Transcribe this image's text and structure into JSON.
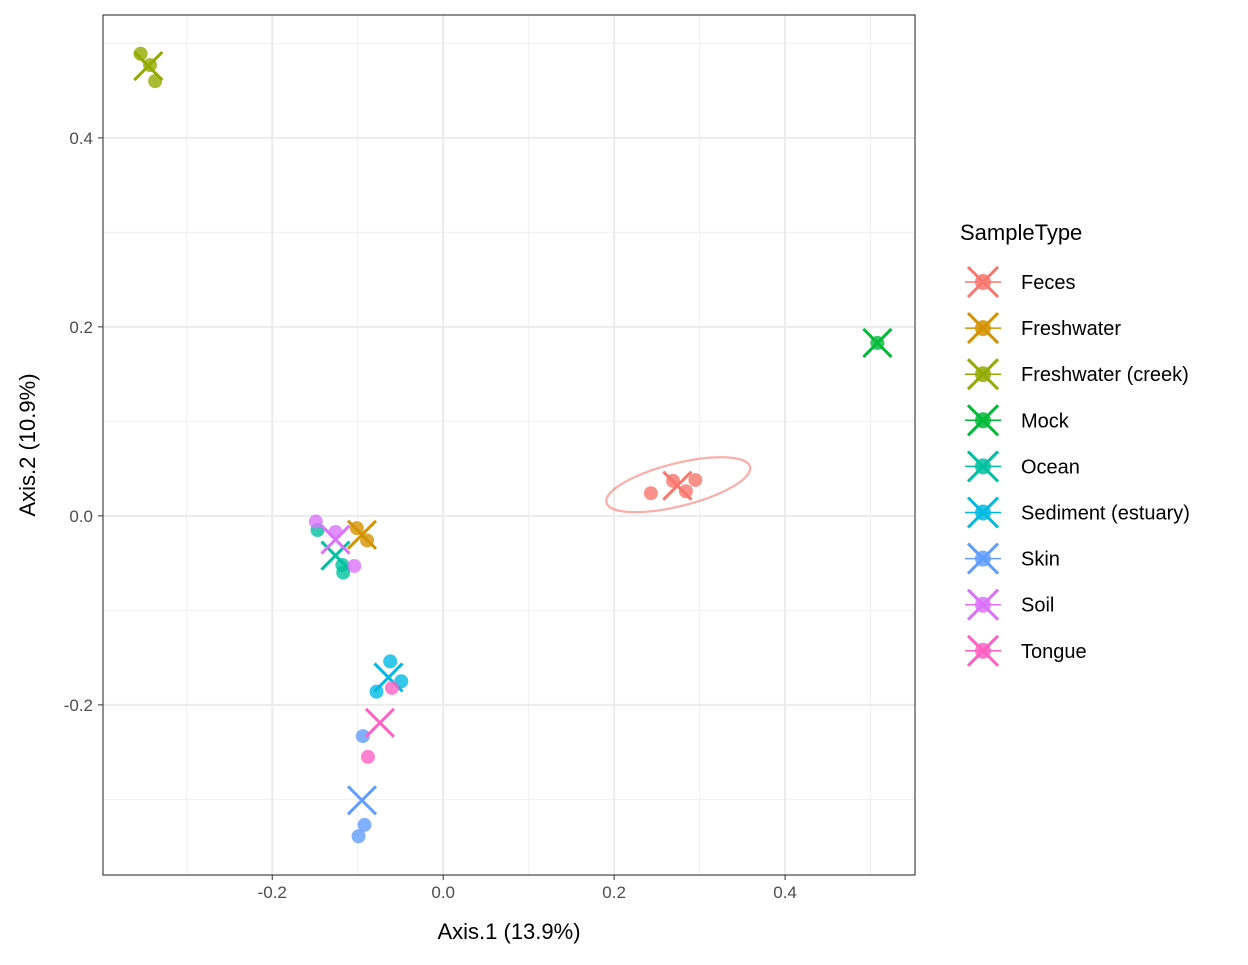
{
  "chart_data": {
    "type": "scatter",
    "xlabel": "Axis.1 (13.9%)",
    "ylabel": "Axis.2 (10.9%)",
    "xlim": [
      -0.398,
      0.552
    ],
    "ylim": [
      -0.38,
      0.53
    ],
    "x_ticks": [
      {
        "v": -0.2,
        "label": "-0.2"
      },
      {
        "v": 0.0,
        "label": "0.0"
      },
      {
        "v": 0.2,
        "label": "0.2"
      },
      {
        "v": 0.4,
        "label": "0.4"
      }
    ],
    "y_ticks": [
      {
        "v": -0.2,
        "label": "-0.2"
      },
      {
        "v": 0.0,
        "label": "0.0"
      },
      {
        "v": 0.2,
        "label": "0.2"
      },
      {
        "v": 0.4,
        "label": "0.4"
      }
    ],
    "grid": true,
    "legend": {
      "title": "SampleType",
      "placement": "right"
    },
    "series": [
      {
        "name": "Feces",
        "color": "#F8766D",
        "points": [
          [
            0.243,
            0.024
          ],
          [
            0.269,
            0.037
          ],
          [
            0.284,
            0.026
          ],
          [
            0.295,
            0.038
          ]
        ],
        "centroid": [
          0.274,
          0.032
        ]
      },
      {
        "name": "Freshwater",
        "color": "#D39200",
        "points": [
          [
            -0.101,
            -0.013
          ],
          [
            -0.089,
            -0.026
          ]
        ],
        "centroid": [
          -0.095,
          -0.02
        ]
      },
      {
        "name": "Freshwater (creek)",
        "color": "#93AA00",
        "points": [
          [
            -0.354,
            0.489
          ],
          [
            -0.343,
            0.477
          ],
          [
            -0.337,
            0.46
          ]
        ],
        "centroid": [
          -0.345,
          0.476
        ]
      },
      {
        "name": "Mock",
        "color": "#00BA38",
        "points": [
          [
            0.508,
            0.183
          ]
        ],
        "centroid": [
          0.508,
          0.183
        ]
      },
      {
        "name": "Ocean",
        "color": "#00C19F",
        "points": [
          [
            -0.147,
            -0.015
          ],
          [
            -0.118,
            -0.052
          ],
          [
            -0.117,
            -0.06
          ]
        ],
        "centroid": [
          -0.126,
          -0.042
        ]
      },
      {
        "name": "Sediment (estuary)",
        "color": "#00B9E3",
        "points": [
          [
            -0.062,
            -0.154
          ],
          [
            -0.049,
            -0.175
          ],
          [
            -0.078,
            -0.186
          ]
        ],
        "centroid": [
          -0.064,
          -0.171
        ]
      },
      {
        "name": "Skin",
        "color": "#619CFF",
        "points": [
          [
            -0.094,
            -0.233
          ],
          [
            -0.092,
            -0.327
          ],
          [
            -0.099,
            -0.339
          ]
        ],
        "centroid": [
          -0.095,
          -0.301
        ]
      },
      {
        "name": "Soil",
        "color": "#DB72FB",
        "points": [
          [
            -0.149,
            -0.006
          ],
          [
            -0.126,
            -0.017
          ],
          [
            -0.104,
            -0.053
          ]
        ],
        "centroid": [
          -0.126,
          -0.025
        ]
      },
      {
        "name": "Tongue",
        "color": "#FF61C3",
        "points": [
          [
            -0.06,
            -0.182
          ],
          [
            -0.088,
            -0.255
          ]
        ],
        "centroid": [
          -0.074,
          -0.219
        ]
      }
    ],
    "ellipses": [
      {
        "group": "Feces",
        "center": [
          0.275,
          0.033
        ],
        "major_end": [
          0.359,
          0.052
        ],
        "minor_end": [
          0.281,
          0.011
        ]
      }
    ]
  }
}
